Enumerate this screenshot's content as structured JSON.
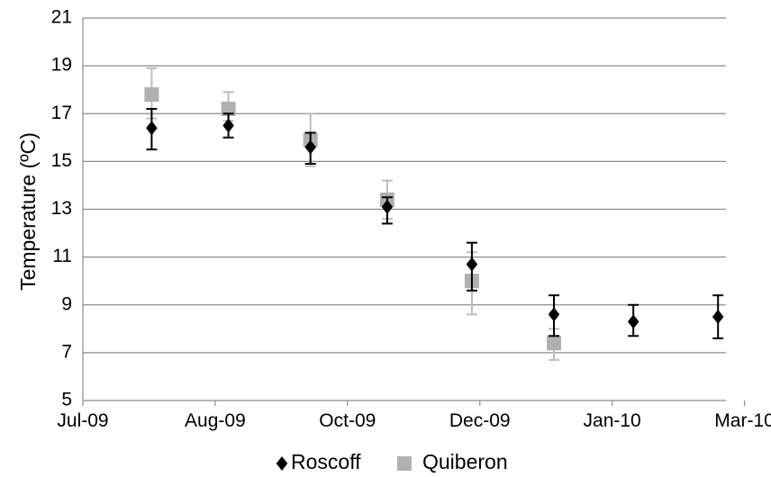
{
  "chart_data": {
    "type": "scatter",
    "title": "",
    "xlabel": "",
    "ylabel": "Temperature (ºC)",
    "ylim": [
      5,
      21
    ],
    "yticks": [
      5,
      7,
      9,
      11,
      13,
      15,
      17,
      19,
      21
    ],
    "xlim": [
      "2009-07-01",
      "2010-03-01"
    ],
    "xtick_labels": [
      "Jul-09",
      "Aug-09",
      "Oct-09",
      "Dec-09",
      "Jan-10",
      "Mar-10"
    ],
    "xtick_dates": [
      "2009-07-01",
      "2009-08-20",
      "2009-10-09",
      "2009-11-28",
      "2010-01-17",
      "2010-03-08"
    ],
    "grid": "horizontal",
    "legend_position": "bottom",
    "series": [
      {
        "name": "Roscoff",
        "marker": "diamond",
        "color": "#000000",
        "points": [
          {
            "x": "2009-07-27",
            "y": 16.4,
            "err_low": 15.5,
            "err_high": 17.2
          },
          {
            "x": "2009-08-25",
            "y": 16.5,
            "err_low": 16.0,
            "err_high": 17.0
          },
          {
            "x": "2009-09-25",
            "y": 15.6,
            "err_low": 14.9,
            "err_high": 16.2
          },
          {
            "x": "2009-10-24",
            "y": 13.1,
            "err_low": 12.4,
            "err_high": 13.5
          },
          {
            "x": "2009-11-25",
            "y": 10.7,
            "err_low": 9.6,
            "err_high": 11.6
          },
          {
            "x": "2009-12-26",
            "y": 8.6,
            "err_low": 7.7,
            "err_high": 9.4
          },
          {
            "x": "2010-01-25",
            "y": 8.3,
            "err_low": 7.7,
            "err_high": 9.0
          },
          {
            "x": "2010-02-26",
            "y": 8.5,
            "err_low": 7.6,
            "err_high": 9.4
          }
        ]
      },
      {
        "name": "Quiberon",
        "marker": "square",
        "color": "#b0b0b0",
        "points": [
          {
            "x": "2009-07-27",
            "y": 17.8,
            "err_low": 16.8,
            "err_high": 18.9
          },
          {
            "x": "2009-08-25",
            "y": 17.2,
            "err_low": 16.7,
            "err_high": 17.9
          },
          {
            "x": "2009-09-25",
            "y": 15.9,
            "err_low": 14.8,
            "err_high": 17.0
          },
          {
            "x": "2009-10-24",
            "y": 13.4,
            "err_low": 12.6,
            "err_high": 14.2
          },
          {
            "x": "2009-11-25",
            "y": 10.0,
            "err_low": 8.6,
            "err_high": 11.2
          },
          {
            "x": "2009-12-26",
            "y": 7.4,
            "err_low": 6.7,
            "err_high": 8.0
          }
        ]
      }
    ]
  }
}
